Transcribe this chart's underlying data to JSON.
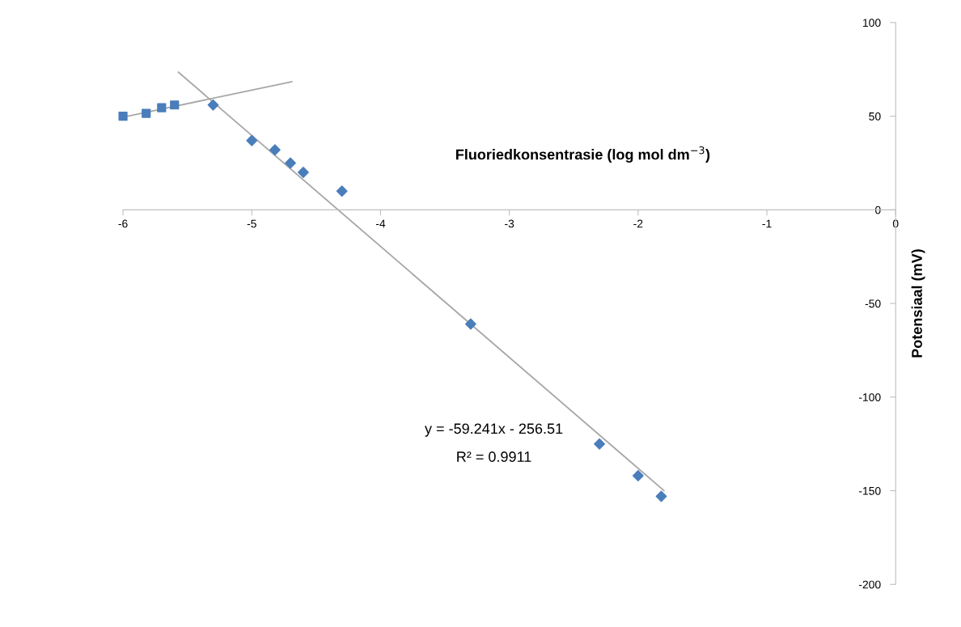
{
  "chart_data": {
    "type": "scatter",
    "xlabel": "Fluoriedkonsentrasie (log mol dm$^{−3}$)",
    "ylabel": "Potensiaal (mV)",
    "xlim": [
      -6,
      0
    ],
    "ylim": [
      -200,
      100
    ],
    "xticks": [
      {
        "value": -6,
        "label": "-6"
      },
      {
        "value": -5,
        "label": "-5"
      },
      {
        "value": -4,
        "label": "-4"
      },
      {
        "value": -3,
        "label": "-3"
      },
      {
        "value": -2,
        "label": "-2"
      },
      {
        "value": -1,
        "label": "-1"
      },
      0
    ],
    "yticks": [
      {
        "value": -200,
        "label": "-200"
      },
      {
        "value": -150,
        "label": "-150"
      },
      {
        "value": -100,
        "label": "-100"
      },
      {
        "value": -50,
        "label": "-50"
      },
      0,
      50,
      100
    ],
    "grid": false,
    "legend": false,
    "series": [
      {
        "marker": "square",
        "color": "#4a7ebb",
        "x": [
          -6,
          -5.82,
          -5.7,
          -5.6
        ],
        "values": [
          50,
          51.5,
          54.5,
          56
        ]
      },
      {
        "marker": "diamond",
        "color": "#4a7ebb",
        "x": [
          -5.3,
          -5.0,
          -4.82,
          -4.7,
          -4.6,
          -4.3,
          -3.3,
          -2.3,
          -2.0,
          -1.82
        ],
        "values": [
          56,
          37,
          32,
          25,
          20,
          10,
          -61,
          -125,
          -142,
          -153
        ]
      },
      {
        "type": "line",
        "marker": "none",
        "line_style": "solid",
        "color": "#a6a6a6",
        "x": [
          -6,
          -4.69
        ],
        "values": [
          49.5,
          68.4
        ]
      },
      {
        "type": "line",
        "marker": "none",
        "line_style": "solid",
        "color": "#a6a6a6",
        "x": [
          -5.57,
          -1.8
        ],
        "values": [
          73.5,
          -149.9
        ]
      }
    ],
    "annotations": [
      "y = -59.241x - 256.51",
      "R² = 0.9911"
    ]
  }
}
